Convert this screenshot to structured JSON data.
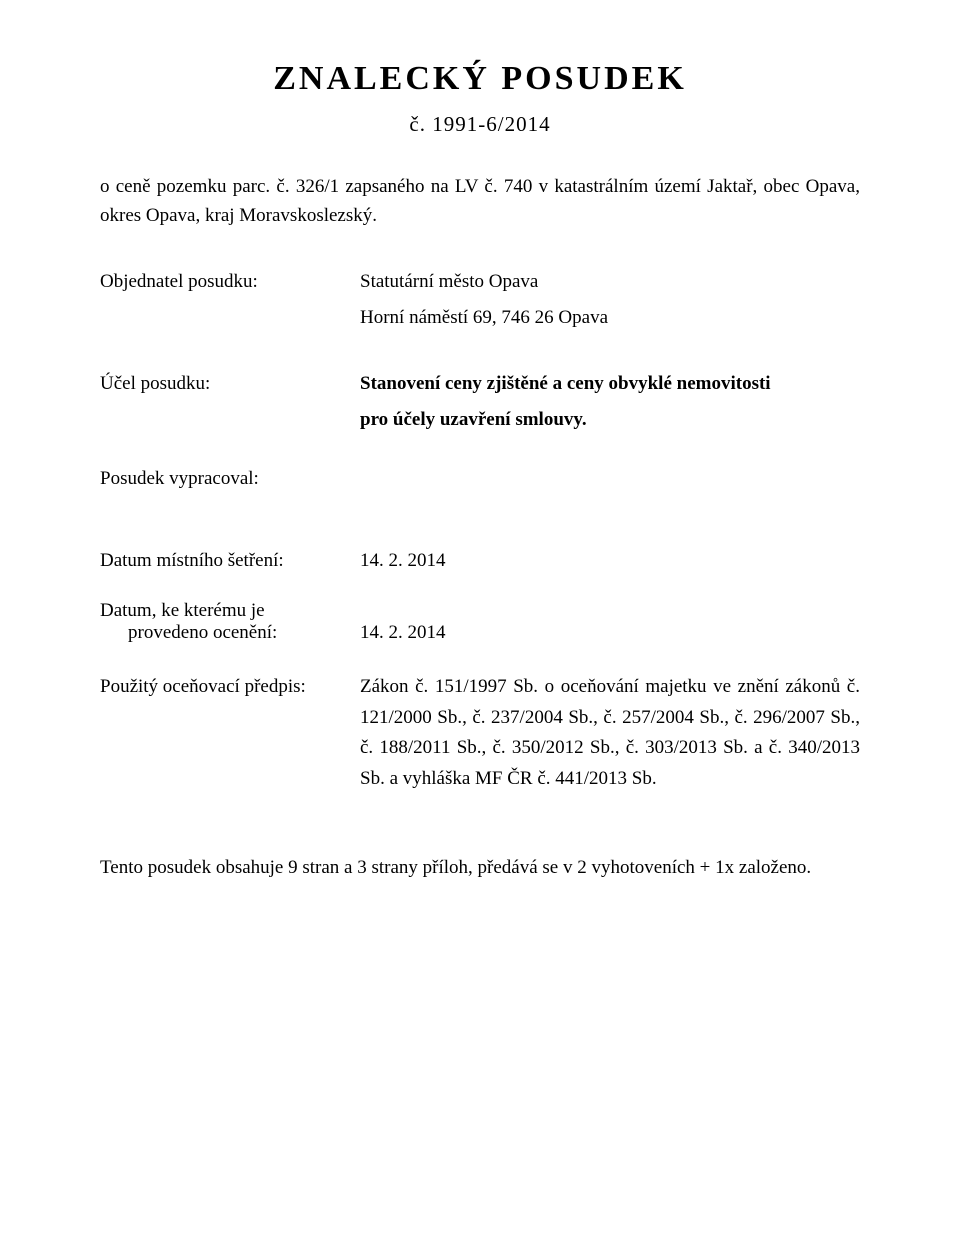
{
  "title": "ZNALECKÝ POSUDEK",
  "case_number": "č. 1991-6/2014",
  "intro_text": "o ceně pozemku parc. č. 326/1 zapsaného na LV č. 740 v katastrálním území Jaktař, obec Opava, okres Opava, kraj Moravskoslezský.",
  "objednatel": {
    "label": "Objednatel posudku:",
    "line1": "Statutární město Opava",
    "line2": "Horní náměstí 69, 746 26 Opava"
  },
  "ucel": {
    "label": "Účel posudku:",
    "line1": "Stanovení ceny zjištěné a ceny obvyklé nemovitosti",
    "line2": "pro účely uzavření smlouvy."
  },
  "vypracoval_label": "Posudek vypracoval:",
  "mistni_setreni": {
    "label": "Datum místního šetření:",
    "value": "14. 2. 2014"
  },
  "oceneni": {
    "line1": "Datum, ke kterému je",
    "line2_label": "provedeno ocenění:",
    "value": "14. 2. 2014"
  },
  "predpis": {
    "label": "Použitý oceňovací předpis:",
    "text": "Zákon č. 151/1997 Sb. o oceňování majetku ve znění zákonů č. 121/2000 Sb., č. 237/2004 Sb., č. 257/2004 Sb., č. 296/2007 Sb., č. 188/2011 Sb., č. 350/2012 Sb., č. 303/2013 Sb. a č. 340/2013 Sb. a vyhláška MF ČR č. 441/2013 Sb."
  },
  "footer": "Tento posudek obsahuje 9 stran a 3 strany příloh, předává se v 2 vyhotoveních + 1x založeno."
}
